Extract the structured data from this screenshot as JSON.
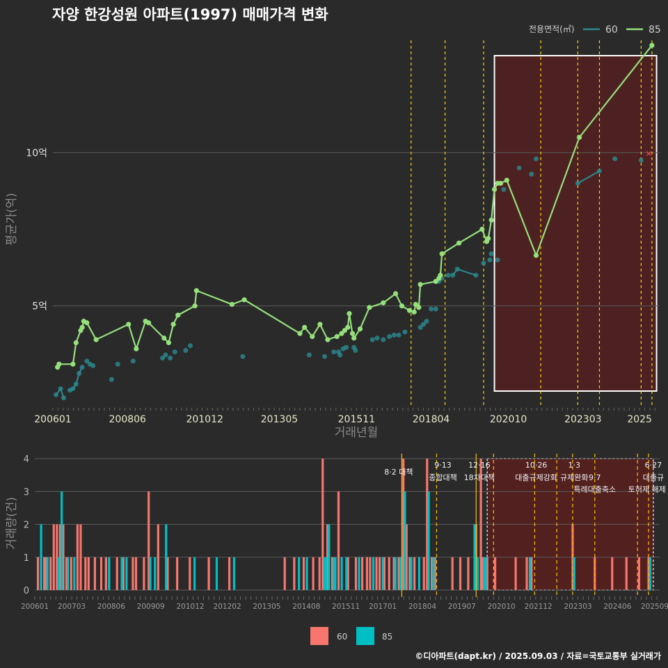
{
  "title": "자양 한강성원 아파트(1997) 매매가격 변화",
  "footer": "©디아파트(dapt.kr) / 2025.09.03 / 자료=국토교통부 실거래가",
  "colors": {
    "s60": "#2a8c91",
    "s85": "#96e07c",
    "bar60": "#f8766d",
    "bar85": "#00bfc4",
    "vline": "#ffd700",
    "highlight": "#5a1f1f"
  },
  "chart_data": [
    {
      "type": "line",
      "title": "자양 한강성원 아파트(1997) 매매가격 변화",
      "xlabel": "거래년월",
      "ylabel": "평균가(억)",
      "x_ticks": [
        "200601",
        "200806",
        "201012",
        "201305",
        "201511",
        "201804",
        "202010",
        "202303",
        "2025"
      ],
      "y_ticks": [
        {
          "v": 5,
          "label": "5억"
        },
        {
          "v": 10,
          "label": "10억"
        }
      ],
      "ylim": [
        1.7,
        13.8
      ],
      "xlim": [
        2006.0,
        2025.65
      ],
      "legend_title": "전용면적(㎡)",
      "legend": [
        "60",
        "85"
      ],
      "highlight_range": [
        2020.3,
        2025.55
      ],
      "policy_lines": [
        2017.6,
        2018.7,
        2019.95,
        2021.8,
        2023.0,
        2023.7,
        2025.05,
        2025.4
      ],
      "series": [
        {
          "name": "60",
          "points": [
            [
              2006.1,
              2.1
            ],
            [
              2006.25,
              2.3
            ],
            [
              2006.35,
              2.0
            ],
            [
              2006.55,
              2.25
            ],
            [
              2006.65,
              2.3
            ],
            [
              2006.75,
              2.45
            ],
            [
              2006.85,
              2.8
            ],
            [
              2006.95,
              3.0
            ],
            [
              2007.1,
              3.2
            ],
            [
              2007.2,
              3.1
            ],
            [
              2007.3,
              3.05
            ],
            [
              2007.9,
              2.6
            ],
            [
              2008.1,
              3.1
            ],
            [
              2008.6,
              3.2
            ],
            [
              2009.55,
              3.3
            ],
            [
              2009.65,
              3.4
            ],
            [
              2009.8,
              3.3
            ],
            [
              2009.95,
              3.5
            ],
            [
              2010.3,
              3.55
            ],
            [
              2010.45,
              3.7
            ],
            [
              2012.15,
              3.35
            ],
            [
              2014.3,
              3.4
            ],
            [
              2014.8,
              3.35
            ],
            [
              2015.1,
              3.5
            ],
            [
              2015.25,
              3.5
            ],
            [
              2015.3,
              3.4
            ],
            [
              2015.4,
              3.6
            ],
            [
              2015.5,
              3.65
            ],
            [
              2015.75,
              3.65
            ],
            [
              2015.8,
              3.55
            ],
            [
              2016.35,
              3.9
            ],
            [
              2016.5,
              3.95
            ],
            [
              2016.7,
              3.9
            ],
            [
              2016.9,
              4.0
            ],
            [
              2017.05,
              4.05
            ],
            [
              2017.2,
              4.05
            ],
            [
              2017.4,
              4.15
            ],
            [
              2017.9,
              4.3
            ],
            [
              2018.0,
              4.4
            ],
            [
              2018.1,
              4.5
            ],
            [
              2018.25,
              4.9
            ],
            [
              2018.4,
              4.9
            ],
            [
              2018.5,
              5.8
            ],
            [
              2018.6,
              5.9
            ],
            [
              2018.8,
              6.0
            ],
            [
              2018.95,
              6.0
            ],
            [
              2019.1,
              6.2
            ],
            [
              2019.7,
              6.0
            ],
            [
              2019.95,
              6.4
            ],
            [
              2020.15,
              6.5
            ],
            [
              2020.2,
              6.7
            ],
            [
              2020.4,
              6.5
            ],
            [
              2020.6,
              8.8
            ],
            [
              2021.1,
              9.5
            ],
            [
              2021.5,
              9.3
            ],
            [
              2021.65,
              9.8
            ],
            [
              2023.0,
              9.0
            ],
            [
              2023.7,
              9.4
            ],
            [
              2024.2,
              9.8
            ],
            [
              2025.05,
              9.75
            ]
          ]
        },
        {
          "name": "85",
          "points": [
            [
              2006.15,
              3.0
            ],
            [
              2006.2,
              3.1
            ],
            [
              2006.65,
              3.1
            ],
            [
              2006.75,
              3.8
            ],
            [
              2006.9,
              4.2
            ],
            [
              2006.95,
              4.3
            ],
            [
              2007.0,
              4.5
            ],
            [
              2007.1,
              4.45
            ],
            [
              2007.4,
              3.9
            ],
            [
              2008.45,
              4.4
            ],
            [
              2008.7,
              3.6
            ],
            [
              2009.0,
              4.5
            ],
            [
              2009.1,
              4.45
            ],
            [
              2009.6,
              3.95
            ],
            [
              2009.75,
              3.8
            ],
            [
              2009.9,
              4.4
            ],
            [
              2010.05,
              4.7
            ],
            [
              2010.6,
              5.0
            ],
            [
              2010.65,
              5.5
            ],
            [
              2011.8,
              5.05
            ],
            [
              2012.2,
              5.2
            ],
            [
              2014.0,
              4.1
            ],
            [
              2014.15,
              4.3
            ],
            [
              2014.4,
              4.0
            ],
            [
              2014.65,
              4.4
            ],
            [
              2014.9,
              3.9
            ],
            [
              2015.2,
              4.0
            ],
            [
              2015.35,
              4.1
            ],
            [
              2015.45,
              4.2
            ],
            [
              2015.55,
              4.3
            ],
            [
              2015.6,
              4.75
            ],
            [
              2015.7,
              4.1
            ],
            [
              2015.75,
              3.95
            ],
            [
              2015.95,
              4.25
            ],
            [
              2016.25,
              4.95
            ],
            [
              2016.7,
              5.1
            ],
            [
              2017.1,
              5.4
            ],
            [
              2017.3,
              5.0
            ],
            [
              2017.55,
              4.85
            ],
            [
              2017.7,
              4.8
            ],
            [
              2017.75,
              5.05
            ],
            [
              2017.85,
              4.95
            ],
            [
              2017.9,
              5.7
            ],
            [
              2018.4,
              5.8
            ],
            [
              2018.5,
              5.9
            ],
            [
              2018.55,
              6.0
            ],
            [
              2018.6,
              6.7
            ],
            [
              2019.15,
              7.05
            ],
            [
              2019.9,
              7.5
            ],
            [
              2020.05,
              7.1
            ],
            [
              2020.1,
              7.2
            ],
            [
              2020.2,
              7.8
            ],
            [
              2020.3,
              8.8
            ],
            [
              2020.4,
              9.0
            ],
            [
              2020.5,
              9.0
            ],
            [
              2020.7,
              9.1
            ],
            [
              2021.65,
              6.65
            ],
            [
              2023.05,
              10.5
            ],
            [
              2025.4,
              13.5
            ]
          ]
        }
      ]
    },
    {
      "type": "bar",
      "xlabel": "",
      "ylabel": "거래량(건)",
      "x_ticks": [
        "200601",
        "200703",
        "200806",
        "200909",
        "201012",
        "201202",
        "201305",
        "201408",
        "201511",
        "201701",
        "201804",
        "201907",
        "202010",
        "202112",
        "202303",
        "202406",
        "202509"
      ],
      "y_ticks": [
        0,
        1,
        2,
        3,
        4
      ],
      "ylim": [
        0,
        4.15
      ],
      "xlim": [
        2006.0,
        2025.75
      ],
      "legend": [
        "60",
        "85"
      ],
      "highlight_range": [
        2020.3,
        2025.55
      ],
      "policy_lines": [
        {
          "x": 2017.6,
          "dashed": false
        },
        {
          "x": 2018.7,
          "dashed": true
        },
        {
          "x": 2019.95,
          "dashed": false
        },
        {
          "x": 2020.5,
          "dashed": true
        },
        {
          "x": 2021.8,
          "dashed": true
        },
        {
          "x": 2022.5,
          "dashed": true
        },
        {
          "x": 2023.0,
          "dashed": true
        },
        {
          "x": 2023.7,
          "dashed": true
        },
        {
          "x": 2025.05,
          "dashed": true
        },
        {
          "x": 2025.4,
          "dashed": true
        }
      ],
      "annotations": [
        {
          "x": 2017.5,
          "line1": "",
          "line2": "8·2 대책"
        },
        {
          "x": 2018.9,
          "line1": "9·13",
          "line2": "종합대책"
        },
        {
          "x": 2020.05,
          "line1": "12·16",
          "line2": "18차대책"
        },
        {
          "x": 2021.85,
          "line1": "10·26",
          "line2": "대출규제강화"
        },
        {
          "x": 2023.05,
          "line1": "1·3",
          "line2": "규제완화"
        },
        {
          "x": 2023.7,
          "line1": "",
          "line2": "9·7"
        },
        {
          "x": 2023.7,
          "line1": "",
          "line2": "특례대출축소"
        },
        {
          "x": 2025.55,
          "line1": "6·27",
          "line2": "대출규"
        },
        {
          "x": 2025.35,
          "line1": "",
          "line2": "토허제 해제"
        }
      ],
      "series": [
        {
          "name": "60",
          "bars": [
            [
              2006.1,
              1
            ],
            [
              2006.3,
              1
            ],
            [
              2006.35,
              1
            ],
            [
              2006.5,
              1
            ],
            [
              2006.6,
              2
            ],
            [
              2006.7,
              2
            ],
            [
              2006.8,
              2
            ],
            [
              2006.9,
              2
            ],
            [
              2007.0,
              1
            ],
            [
              2007.15,
              1
            ],
            [
              2007.35,
              2
            ],
            [
              2007.45,
              2
            ],
            [
              2007.6,
              1
            ],
            [
              2007.7,
              1
            ],
            [
              2007.9,
              1
            ],
            [
              2008.1,
              1
            ],
            [
              2008.25,
              1
            ],
            [
              2008.6,
              1
            ],
            [
              2008.8,
              1
            ],
            [
              2009.1,
              1
            ],
            [
              2009.2,
              1
            ],
            [
              2009.45,
              1
            ],
            [
              2009.6,
              3
            ],
            [
              2009.9,
              2
            ],
            [
              2010.2,
              1
            ],
            [
              2010.5,
              1
            ],
            [
              2010.9,
              1
            ],
            [
              2011.5,
              1
            ],
            [
              2012.15,
              1
            ],
            [
              2013.9,
              1
            ],
            [
              2014.2,
              1
            ],
            [
              2014.5,
              1
            ],
            [
              2014.8,
              1
            ],
            [
              2015.0,
              1
            ],
            [
              2015.1,
              4
            ],
            [
              2015.25,
              2
            ],
            [
              2015.4,
              1
            ],
            [
              2015.6,
              3
            ],
            [
              2015.9,
              1
            ],
            [
              2016.15,
              1
            ],
            [
              2016.35,
              1
            ],
            [
              2016.5,
              1
            ],
            [
              2016.6,
              1
            ],
            [
              2016.8,
              1
            ],
            [
              2016.9,
              1
            ],
            [
              2017.05,
              1
            ],
            [
              2017.2,
              1
            ],
            [
              2017.35,
              1
            ],
            [
              2017.5,
              1
            ],
            [
              2017.65,
              4
            ],
            [
              2017.75,
              2
            ],
            [
              2017.85,
              1
            ],
            [
              2018.0,
              1
            ],
            [
              2018.3,
              1
            ],
            [
              2018.4,
              4
            ],
            [
              2018.55,
              1
            ],
            [
              2018.65,
              1
            ],
            [
              2019.2,
              1
            ],
            [
              2019.45,
              1
            ],
            [
              2019.7,
              1
            ],
            [
              2019.95,
              2
            ],
            [
              2020.1,
              4
            ],
            [
              2020.15,
              1
            ],
            [
              2020.3,
              1
            ],
            [
              2020.55,
              1
            ],
            [
              2021.2,
              1
            ],
            [
              2021.55,
              1
            ],
            [
              2021.7,
              1
            ],
            [
              2023.0,
              2
            ],
            [
              2023.7,
              1
            ],
            [
              2024.25,
              1
            ],
            [
              2024.7,
              1
            ],
            [
              2025.1,
              1
            ],
            [
              2025.4,
              1
            ]
          ]
        },
        {
          "name": "85",
          "bars": [
            [
              2006.2,
              2
            ],
            [
              2006.4,
              1
            ],
            [
              2006.75,
              1
            ],
            [
              2006.85,
              3
            ],
            [
              2007.05,
              1
            ],
            [
              2007.25,
              1
            ],
            [
              2008.35,
              1
            ],
            [
              2008.75,
              1
            ],
            [
              2008.9,
              1
            ],
            [
              2009.65,
              1
            ],
            [
              2009.8,
              1
            ],
            [
              2010.15,
              2
            ],
            [
              2011.05,
              1
            ],
            [
              2011.75,
              1
            ],
            [
              2012.3,
              1
            ],
            [
              2014.35,
              1
            ],
            [
              2014.6,
              1
            ],
            [
              2015.15,
              1
            ],
            [
              2015.2,
              1
            ],
            [
              2015.3,
              2
            ],
            [
              2015.45,
              1
            ],
            [
              2015.5,
              1
            ],
            [
              2015.7,
              1
            ],
            [
              2015.85,
              1
            ],
            [
              2016.25,
              1
            ],
            [
              2016.7,
              1
            ],
            [
              2017.0,
              1
            ],
            [
              2017.4,
              1
            ],
            [
              2017.55,
              1
            ],
            [
              2017.7,
              3
            ],
            [
              2017.9,
              1
            ],
            [
              2018.15,
              1
            ],
            [
              2018.45,
              3
            ],
            [
              2018.6,
              1
            ],
            [
              2019.9,
              2
            ],
            [
              2020.0,
              1
            ],
            [
              2020.2,
              1
            ],
            [
              2020.25,
              1
            ],
            [
              2021.65,
              1
            ],
            [
              2023.05,
              1
            ],
            [
              2025.45,
              1
            ]
          ]
        }
      ]
    }
  ]
}
